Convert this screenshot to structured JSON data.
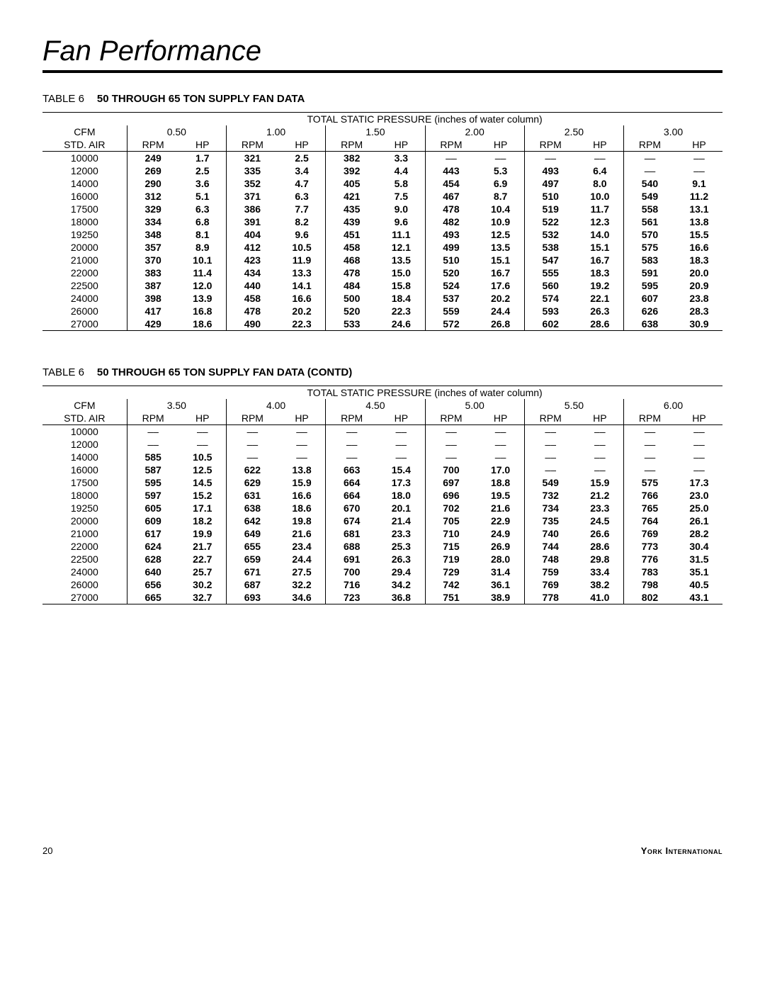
{
  "page": {
    "title": "Fan Performance",
    "page_number": "20",
    "brand": "York International"
  },
  "tables": [
    {
      "caption_label": "TABLE 6",
      "caption_title": "50 THROUGH 65 TON SUPPLY FAN DATA",
      "spanning_header": "TOTAL STATIC PRESSURE (inches of water column)",
      "corner_top": "CFM",
      "corner_bottom": "STD. AIR",
      "pressures": [
        "0.50",
        "1.00",
        "1.50",
        "2.00",
        "2.50",
        "3.00"
      ],
      "sub_a": "RPM",
      "sub_b": "HP",
      "cfm": [
        "10000",
        "12000",
        "14000",
        "16000",
        "17500",
        "18000",
        "19250",
        "20000",
        "21000",
        "22000",
        "22500",
        "24000",
        "26000",
        "27000"
      ],
      "data": [
        [
          [
            "249",
            "1.7"
          ],
          [
            "321",
            "2.5"
          ],
          [
            "382",
            "3.3"
          ],
          [
            "—",
            "—"
          ],
          [
            "—",
            "—"
          ],
          [
            "—",
            "—"
          ]
        ],
        [
          [
            "269",
            "2.5"
          ],
          [
            "335",
            "3.4"
          ],
          [
            "392",
            "4.4"
          ],
          [
            "443",
            "5.3"
          ],
          [
            "493",
            "6.4"
          ],
          [
            "—",
            "—"
          ]
        ],
        [
          [
            "290",
            "3.6"
          ],
          [
            "352",
            "4.7"
          ],
          [
            "405",
            "5.8"
          ],
          [
            "454",
            "6.9"
          ],
          [
            "497",
            "8.0"
          ],
          [
            "540",
            "9.1"
          ]
        ],
        [
          [
            "312",
            "5.1"
          ],
          [
            "371",
            "6.3"
          ],
          [
            "421",
            "7.5"
          ],
          [
            "467",
            "8.7"
          ],
          [
            "510",
            "10.0"
          ],
          [
            "549",
            "11.2"
          ]
        ],
        [
          [
            "329",
            "6.3"
          ],
          [
            "386",
            "7.7"
          ],
          [
            "435",
            "9.0"
          ],
          [
            "478",
            "10.4"
          ],
          [
            "519",
            "11.7"
          ],
          [
            "558",
            "13.1"
          ]
        ],
        [
          [
            "334",
            "6.8"
          ],
          [
            "391",
            "8.2"
          ],
          [
            "439",
            "9.6"
          ],
          [
            "482",
            "10.9"
          ],
          [
            "522",
            "12.3"
          ],
          [
            "561",
            "13.8"
          ]
        ],
        [
          [
            "348",
            "8.1"
          ],
          [
            "404",
            "9.6"
          ],
          [
            "451",
            "11.1"
          ],
          [
            "493",
            "12.5"
          ],
          [
            "532",
            "14.0"
          ],
          [
            "570",
            "15.5"
          ]
        ],
        [
          [
            "357",
            "8.9"
          ],
          [
            "412",
            "10.5"
          ],
          [
            "458",
            "12.1"
          ],
          [
            "499",
            "13.5"
          ],
          [
            "538",
            "15.1"
          ],
          [
            "575",
            "16.6"
          ]
        ],
        [
          [
            "370",
            "10.1"
          ],
          [
            "423",
            "11.9"
          ],
          [
            "468",
            "13.5"
          ],
          [
            "510",
            "15.1"
          ],
          [
            "547",
            "16.7"
          ],
          [
            "583",
            "18.3"
          ]
        ],
        [
          [
            "383",
            "11.4"
          ],
          [
            "434",
            "13.3"
          ],
          [
            "478",
            "15.0"
          ],
          [
            "520",
            "16.7"
          ],
          [
            "555",
            "18.3"
          ],
          [
            "591",
            "20.0"
          ]
        ],
        [
          [
            "387",
            "12.0"
          ],
          [
            "440",
            "14.1"
          ],
          [
            "484",
            "15.8"
          ],
          [
            "524",
            "17.6"
          ],
          [
            "560",
            "19.2"
          ],
          [
            "595",
            "20.9"
          ]
        ],
        [
          [
            "398",
            "13.9"
          ],
          [
            "458",
            "16.6"
          ],
          [
            "500",
            "18.4"
          ],
          [
            "537",
            "20.2"
          ],
          [
            "574",
            "22.1"
          ],
          [
            "607",
            "23.8"
          ]
        ],
        [
          [
            "417",
            "16.8"
          ],
          [
            "478",
            "20.2"
          ],
          [
            "520",
            "22.3"
          ],
          [
            "559",
            "24.4"
          ],
          [
            "593",
            "26.3"
          ],
          [
            "626",
            "28.3"
          ]
        ],
        [
          [
            "429",
            "18.6"
          ],
          [
            "490",
            "22.3"
          ],
          [
            "533",
            "24.6"
          ],
          [
            "572",
            "26.8"
          ],
          [
            "602",
            "28.6"
          ],
          [
            "638",
            "30.9"
          ]
        ]
      ]
    },
    {
      "caption_label": "TABLE 6",
      "caption_title": "50 THROUGH 65 TON SUPPLY FAN DATA (CONTD)",
      "spanning_header": "TOTAL STATIC PRESSURE (inches of water column)",
      "corner_top": "CFM",
      "corner_bottom": "STD. AIR",
      "pressures": [
        "3.50",
        "4.00",
        "4.50",
        "5.00",
        "5.50",
        "6.00"
      ],
      "sub_a": "RPM",
      "sub_b": "HP",
      "cfm": [
        "10000",
        "12000",
        "14000",
        "16000",
        "17500",
        "18000",
        "19250",
        "20000",
        "21000",
        "22000",
        "22500",
        "24000",
        "26000",
        "27000"
      ],
      "data": [
        [
          [
            "—",
            "—"
          ],
          [
            "—",
            "—"
          ],
          [
            "—",
            "—"
          ],
          [
            "—",
            "—"
          ],
          [
            "—",
            "—"
          ],
          [
            "—",
            "—"
          ]
        ],
        [
          [
            "—",
            "—"
          ],
          [
            "—",
            "—"
          ],
          [
            "—",
            "—"
          ],
          [
            "—",
            "—"
          ],
          [
            "—",
            "—"
          ],
          [
            "—",
            "—"
          ]
        ],
        [
          [
            "585",
            "10.5"
          ],
          [
            "—",
            "—"
          ],
          [
            "—",
            "—"
          ],
          [
            "—",
            "—"
          ],
          [
            "—",
            "—"
          ],
          [
            "—",
            "—"
          ]
        ],
        [
          [
            "587",
            "12.5"
          ],
          [
            "622",
            "13.8"
          ],
          [
            "663",
            "15.4"
          ],
          [
            "700",
            "17.0"
          ],
          [
            "—",
            "—"
          ],
          [
            "—",
            "—"
          ]
        ],
        [
          [
            "595",
            "14.5"
          ],
          [
            "629",
            "15.9"
          ],
          [
            "664",
            "17.3"
          ],
          [
            "697",
            "18.8"
          ],
          [
            "549",
            "15.9"
          ],
          [
            "575",
            "17.3"
          ]
        ],
        [
          [
            "597",
            "15.2"
          ],
          [
            "631",
            "16.6"
          ],
          [
            "664",
            "18.0"
          ],
          [
            "696",
            "19.5"
          ],
          [
            "732",
            "21.2"
          ],
          [
            "766",
            "23.0"
          ]
        ],
        [
          [
            "605",
            "17.1"
          ],
          [
            "638",
            "18.6"
          ],
          [
            "670",
            "20.1"
          ],
          [
            "702",
            "21.6"
          ],
          [
            "734",
            "23.3"
          ],
          [
            "765",
            "25.0"
          ]
        ],
        [
          [
            "609",
            "18.2"
          ],
          [
            "642",
            "19.8"
          ],
          [
            "674",
            "21.4"
          ],
          [
            "705",
            "22.9"
          ],
          [
            "735",
            "24.5"
          ],
          [
            "764",
            "26.1"
          ]
        ],
        [
          [
            "617",
            "19.9"
          ],
          [
            "649",
            "21.6"
          ],
          [
            "681",
            "23.3"
          ],
          [
            "710",
            "24.9"
          ],
          [
            "740",
            "26.6"
          ],
          [
            "769",
            "28.2"
          ]
        ],
        [
          [
            "624",
            "21.7"
          ],
          [
            "655",
            "23.4"
          ],
          [
            "688",
            "25.3"
          ],
          [
            "715",
            "26.9"
          ],
          [
            "744",
            "28.6"
          ],
          [
            "773",
            "30.4"
          ]
        ],
        [
          [
            "628",
            "22.7"
          ],
          [
            "659",
            "24.4"
          ],
          [
            "691",
            "26.3"
          ],
          [
            "719",
            "28.0"
          ],
          [
            "748",
            "29.8"
          ],
          [
            "776",
            "31.5"
          ]
        ],
        [
          [
            "640",
            "25.7"
          ],
          [
            "671",
            "27.5"
          ],
          [
            "700",
            "29.4"
          ],
          [
            "729",
            "31.4"
          ],
          [
            "759",
            "33.4"
          ],
          [
            "783",
            "35.1"
          ]
        ],
        [
          [
            "656",
            "30.2"
          ],
          [
            "687",
            "32.2"
          ],
          [
            "716",
            "34.2"
          ],
          [
            "742",
            "36.1"
          ],
          [
            "769",
            "38.2"
          ],
          [
            "798",
            "40.5"
          ]
        ],
        [
          [
            "665",
            "32.7"
          ],
          [
            "693",
            "34.6"
          ],
          [
            "723",
            "36.8"
          ],
          [
            "751",
            "38.9"
          ],
          [
            "778",
            "41.0"
          ],
          [
            "802",
            "43.1"
          ]
        ]
      ]
    }
  ]
}
